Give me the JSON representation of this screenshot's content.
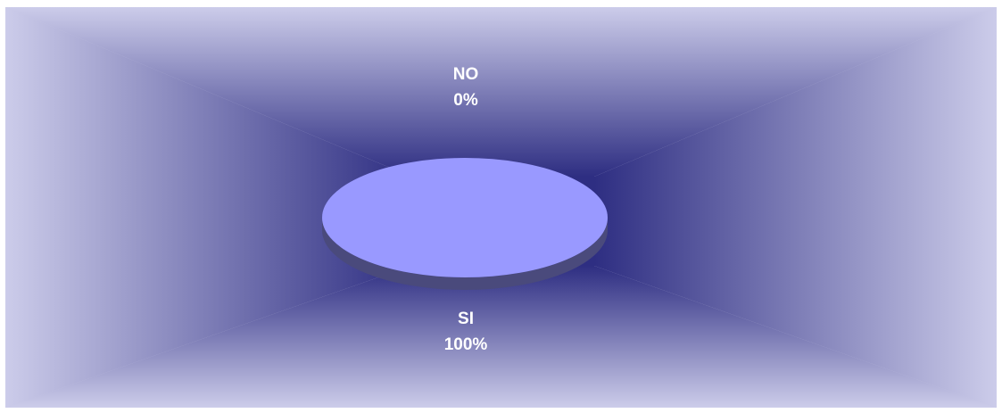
{
  "colors": {
    "slice_top": "#9999ff",
    "slice_side": "#4a4a7c",
    "background_center": "#2e2e82",
    "background_edge": "#ccccea",
    "label_text": "#ffffff"
  },
  "chart_data": {
    "type": "pie",
    "title": "",
    "style": "3d",
    "categories": [
      "NO",
      "SI"
    ],
    "values": [
      0,
      100
    ],
    "data_labels": [
      {
        "category": "NO",
        "percent": "0%"
      },
      {
        "category": "SI",
        "percent": "100%"
      }
    ],
    "legend": "none"
  }
}
